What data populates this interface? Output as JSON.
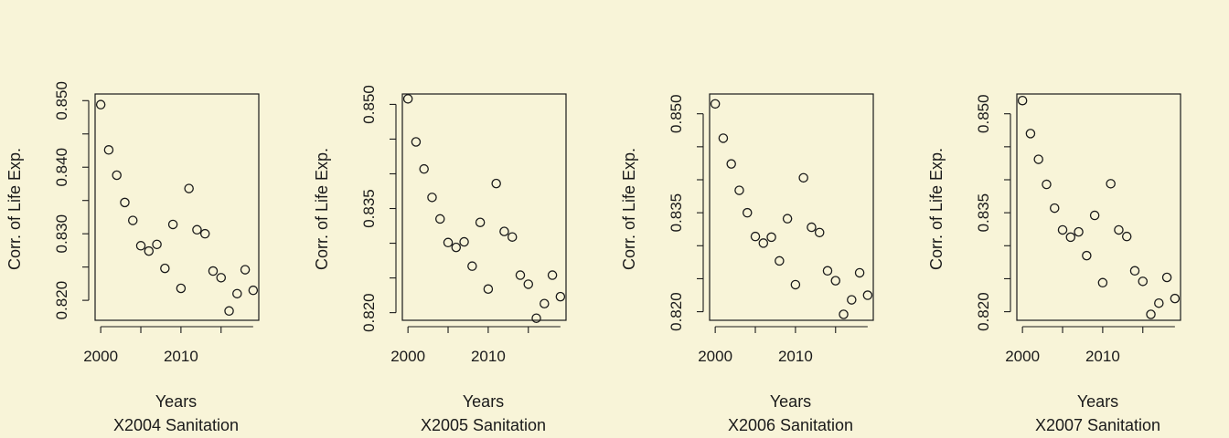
{
  "chart_data": [
    {
      "type": "scatter",
      "title": "X2004 Sanitation",
      "xlabel": "Years",
      "ylabel": "Corr. of Life Exp.",
      "xlim": [
        1999.3,
        2019.7
      ],
      "ylim": [
        0.817,
        0.851
      ],
      "xticks": [
        2000,
        2010
      ],
      "xtick_labels": [
        "2000",
        "2010"
      ],
      "yticks": [
        0.82,
        0.825,
        0.83,
        0.835,
        0.84,
        0.845,
        0.85
      ],
      "ytick_labels": [
        "0.820",
        "",
        "0.830",
        "",
        "0.840",
        "",
        "0.850"
      ],
      "grid": false,
      "x": [
        2000,
        2001,
        2002,
        2003,
        2004,
        2005,
        2006,
        2007,
        2008,
        2009,
        2010,
        2011,
        2012,
        2013,
        2014,
        2015,
        2016,
        2017,
        2018,
        2019
      ],
      "y": [
        0.8494,
        0.8426,
        0.8388,
        0.8347,
        0.832,
        0.8282,
        0.8274,
        0.8284,
        0.8248,
        0.8314,
        0.8218,
        0.8368,
        0.8306,
        0.83,
        0.8244,
        0.8234,
        0.8184,
        0.821,
        0.8246,
        0.8215
      ]
    },
    {
      "type": "scatter",
      "title": "X2005 Sanitation",
      "xlabel": "Years",
      "ylabel": "Corr. of Life Exp.",
      "xlim": [
        1999.3,
        2019.7
      ],
      "ylim": [
        0.8189,
        0.8515
      ],
      "xticks": [
        2000,
        2010
      ],
      "xtick_labels": [
        "2000",
        "2010"
      ],
      "yticks": [
        0.82,
        0.825,
        0.83,
        0.835,
        0.84,
        0.845,
        0.85
      ],
      "ytick_labels": [
        "0.820",
        "",
        "",
        "0.835",
        "",
        "",
        "0.850"
      ],
      "grid": false,
      "x": [
        2000,
        2001,
        2002,
        2003,
        2004,
        2005,
        2006,
        2007,
        2008,
        2009,
        2010,
        2011,
        2012,
        2013,
        2014,
        2015,
        2016,
        2017,
        2018,
        2019
      ],
      "y": [
        0.8508,
        0.8446,
        0.8407,
        0.8366,
        0.8335,
        0.8301,
        0.8294,
        0.8302,
        0.8267,
        0.833,
        0.8234,
        0.8386,
        0.8317,
        0.8309,
        0.8254,
        0.8241,
        0.8192,
        0.8213,
        0.8254,
        0.8223
      ]
    },
    {
      "type": "scatter",
      "title": "X2006 Sanitation",
      "xlabel": "Years",
      "ylabel": "Corr. of Life Exp.",
      "xlim": [
        1999.3,
        2019.7
      ],
      "ylim": [
        0.8187,
        0.853
      ],
      "xticks": [
        2000,
        2010
      ],
      "xtick_labels": [
        "2000",
        "2010"
      ],
      "yticks": [
        0.82,
        0.825,
        0.83,
        0.835,
        0.84,
        0.845,
        0.85
      ],
      "ytick_labels": [
        "0.820",
        "",
        "",
        "0.835",
        "",
        "",
        "0.850"
      ],
      "grid": false,
      "x": [
        2000,
        2001,
        2002,
        2003,
        2004,
        2005,
        2006,
        2007,
        2008,
        2009,
        2010,
        2011,
        2012,
        2013,
        2014,
        2015,
        2016,
        2017,
        2018,
        2019
      ],
      "y": [
        0.8515,
        0.8463,
        0.8424,
        0.8384,
        0.835,
        0.8314,
        0.8304,
        0.8313,
        0.8277,
        0.8341,
        0.8241,
        0.8403,
        0.8328,
        0.832,
        0.8262,
        0.8247,
        0.8196,
        0.8218,
        0.8259,
        0.8225
      ]
    },
    {
      "type": "scatter",
      "title": "X2007 Sanitation",
      "xlabel": "Years",
      "ylabel": "Corr. of Life Exp.",
      "xlim": [
        1999.3,
        2019.7
      ],
      "ylim": [
        0.8187,
        0.853
      ],
      "xticks": [
        2000,
        2010
      ],
      "xtick_labels": [
        "2000",
        "2010"
      ],
      "yticks": [
        0.82,
        0.825,
        0.83,
        0.835,
        0.84,
        0.845,
        0.85
      ],
      "ytick_labels": [
        "0.820",
        "",
        "",
        "0.835",
        "",
        "",
        "0.850"
      ],
      "grid": false,
      "x": [
        2000,
        2001,
        2002,
        2003,
        2004,
        2005,
        2006,
        2007,
        2008,
        2009,
        2010,
        2011,
        2012,
        2013,
        2014,
        2015,
        2016,
        2017,
        2018,
        2019
      ],
      "y": [
        0.852,
        0.847,
        0.8431,
        0.8393,
        0.8357,
        0.8324,
        0.8313,
        0.8321,
        0.8285,
        0.8346,
        0.8244,
        0.8394,
        0.8324,
        0.8314,
        0.8262,
        0.8246,
        0.8196,
        0.8213,
        0.8252,
        0.822
      ]
    }
  ]
}
